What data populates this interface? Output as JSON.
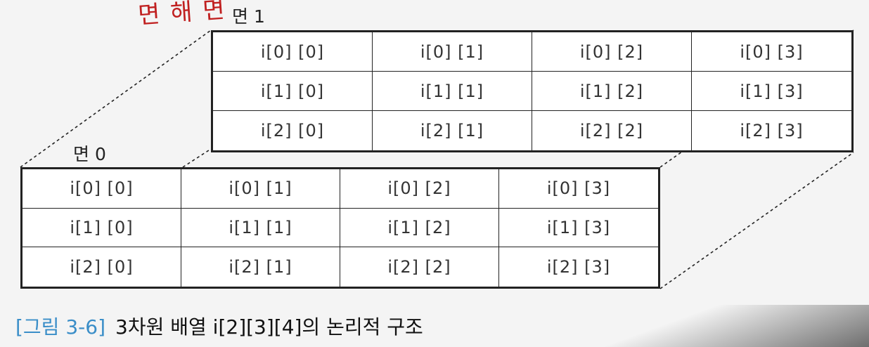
{
  "annotation": "면 해 면",
  "back_face": {
    "label": "면 1",
    "rows": [
      [
        "i[0] [0]",
        "i[0] [1]",
        "i[0] [2]",
        "i[0] [3]"
      ],
      [
        "i[1] [0]",
        "i[1] [1]",
        "i[1] [2]",
        "i[1] [3]"
      ],
      [
        "i[2] [0]",
        "i[2] [1]",
        "i[2] [2]",
        "i[2] [3]"
      ]
    ]
  },
  "front_face": {
    "label": "면 0",
    "rows": [
      [
        "i[0] [0]",
        "i[0] [1]",
        "i[0] [2]",
        "i[0] [3]"
      ],
      [
        "i[1] [0]",
        "i[1] [1]",
        "i[1] [2]",
        "i[1] [3]"
      ],
      [
        "i[2] [0]",
        "i[2] [1]",
        "i[2] [2]",
        "i[2] [3]"
      ]
    ]
  },
  "caption": {
    "figure": "[그림 3-6]",
    "text": "3차원 배열 i[2][3][4]의 논리적 구조"
  },
  "colors": {
    "figure_label": "#3a8ec8",
    "annotation": "#c02020",
    "lines": "#222222"
  }
}
